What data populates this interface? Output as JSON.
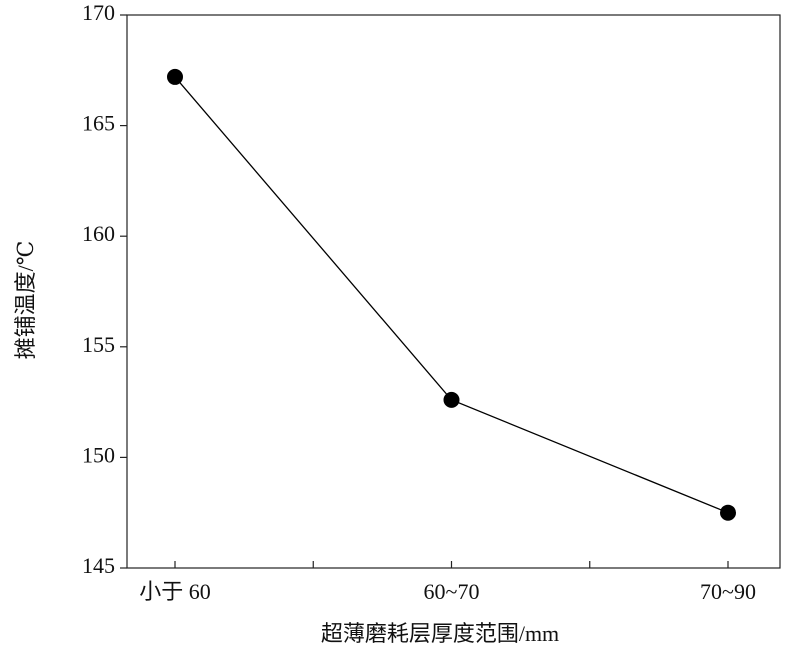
{
  "chart_data": {
    "type": "line",
    "x_label": "超薄磨耗层厚度范围/mm",
    "y_label": "摊铺温度/℃",
    "categories": [
      "小于 60",
      "60~70",
      "70~90"
    ],
    "values": [
      167.2,
      152.6,
      147.5
    ],
    "color": "#000000",
    "ylim": [
      145,
      170
    ],
    "yticks": [
      145,
      150,
      155,
      160,
      165,
      170
    ],
    "grid": false
  }
}
